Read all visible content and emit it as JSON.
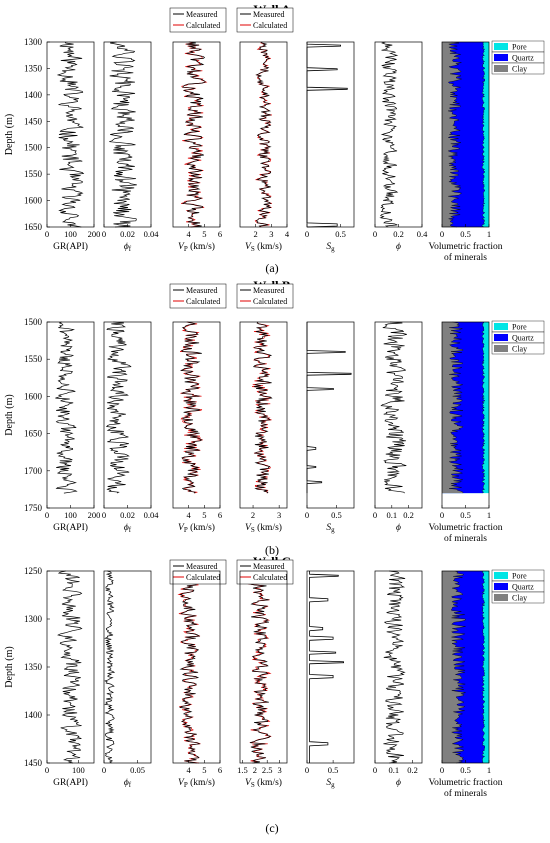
{
  "chart_data": [
    {
      "title": "Well A",
      "caption": "(a)",
      "type": "line",
      "depth_label": "Depth (m)",
      "depth_range": [
        1300,
        1650
      ],
      "depth_ticks": [
        "1300",
        "1350",
        "1400",
        "1450",
        "1500",
        "1550",
        "1600",
        "1650"
      ],
      "panels": [
        {
          "id": "gr",
          "xlabel": "GR(API)",
          "xlim": [
            0,
            200
          ],
          "xticks": [
            "0",
            "100",
            "200"
          ]
        },
        {
          "id": "phif",
          "xlabel": "ϕ",
          "xlabel_sub": "f",
          "xlim": [
            0,
            0.04
          ],
          "xticks": [
            "0",
            "0.02",
            "0.04"
          ]
        },
        {
          "id": "vp",
          "xlabel": "V",
          "xlabel_sub": "P",
          "xlabel_suffix": " (km/s)",
          "xlim": [
            3,
            6
          ],
          "xticks": [
            "4",
            "5",
            "6"
          ],
          "legend": [
            "Measured",
            "Calculated"
          ]
        },
        {
          "id": "vs",
          "xlabel": "V",
          "xlabel_sub": "S",
          "xlabel_suffix": " (km/s)",
          "xlim": [
            1,
            4
          ],
          "xticks": [
            "2",
            "3",
            "4"
          ],
          "legend": [
            "Measured",
            "Calculated"
          ]
        },
        {
          "id": "sg",
          "xlabel": "S",
          "xlabel_sub": "g",
          "xlim": [
            0,
            0.7
          ],
          "xticks": [
            "0",
            "0.5"
          ]
        },
        {
          "id": "phi",
          "xlabel": "ϕ",
          "xlim": [
            0,
            0.4
          ],
          "xticks": [
            "0",
            "0.2",
            "0.4"
          ]
        },
        {
          "id": "vol",
          "xlabel": "Volumetric fraction",
          "xlabel2": "of minerals",
          "xlim": [
            0,
            1
          ],
          "xticks": [
            "0",
            "0.5",
            "1"
          ],
          "legend": [
            "Pore",
            "Quartz",
            "Clay"
          ]
        }
      ],
      "series": {
        "gr": {
          "mean": 100,
          "amp": 45,
          "seed": 11,
          "lo": 30,
          "hi": 200
        },
        "phif": {
          "mean": 0.016,
          "amp": 0.01,
          "seed": 12,
          "lo": 0,
          "hi": 0.04
        },
        "vp": {
          "mean": 4.3,
          "amp": 0.55,
          "seed": 13,
          "lo": 3.2,
          "hi": 5.8
        },
        "vs": {
          "mean": 2.55,
          "amp": 0.4,
          "seed": 14,
          "lo": 1.6,
          "hi": 3.8
        },
        "sg": {
          "base": 0.0,
          "spikes": [
            [
              1307,
              0.5
            ],
            [
              1352,
              0.45
            ],
            [
              1388,
              0.6
            ],
            [
              1646,
              0.45
            ]
          ]
        },
        "phi": {
          "mean": 0.12,
          "amp": 0.06,
          "seed": 15,
          "lo": 0,
          "hi": 0.38
        },
        "vol": {
          "clay": 0.28,
          "clay_amp": 0.15,
          "quartz_top": 0.88,
          "seed": 16
        }
      }
    },
    {
      "title": "Well B",
      "caption": "(b)",
      "type": "line",
      "depth_label": "Depth (m)",
      "depth_range": [
        1500,
        1750
      ],
      "depth_ticks": [
        "1500",
        "1550",
        "1600",
        "1650",
        "1700",
        "1750"
      ],
      "data_end": 1730,
      "panels": [
        {
          "id": "gr",
          "xlabel": "GR(API)",
          "xlim": [
            0,
            200
          ],
          "xticks": [
            "0",
            "100",
            "200"
          ]
        },
        {
          "id": "phif",
          "xlabel": "ϕ",
          "xlabel_sub": "f",
          "xlim": [
            0,
            0.04
          ],
          "xticks": [
            "0",
            "0.02",
            "0.04"
          ]
        },
        {
          "id": "vp",
          "xlabel": "V",
          "xlabel_sub": "P",
          "xlabel_suffix": " (km/s)",
          "xlim": [
            3,
            6
          ],
          "xticks": [
            "4",
            "5",
            "6"
          ],
          "legend": [
            "Measured",
            "Calculated"
          ]
        },
        {
          "id": "vs",
          "xlabel": "V",
          "xlabel_sub": "S",
          "xlabel_suffix": " (km/s)",
          "xlim": [
            1.5,
            3.3
          ],
          "xticks": [
            "2",
            "3"
          ],
          "legend": [
            "Measured",
            "Calculated"
          ]
        },
        {
          "id": "sg",
          "xlabel": "S",
          "xlabel_sub": "g",
          "xlim": [
            0,
            0.8
          ],
          "xticks": [
            "0",
            "0.5"
          ]
        },
        {
          "id": "phi",
          "xlabel": "ϕ",
          "xlim": [
            0,
            0.28
          ],
          "xticks": [
            "0",
            "0.1",
            "0.2"
          ]
        },
        {
          "id": "vol",
          "xlabel": "Volumetric fraction",
          "xlabel2": "of minerals",
          "xlim": [
            0,
            1
          ],
          "xticks": [
            "0",
            "0.5",
            "1"
          ],
          "legend": [
            "Pore",
            "Quartz",
            "Clay"
          ]
        }
      ],
      "series": {
        "gr": {
          "mean": 80,
          "amp": 35,
          "seed": 21,
          "lo": 20,
          "hi": 190
        },
        "phif": {
          "mean": 0.012,
          "amp": 0.008,
          "seed": 22,
          "lo": 0,
          "hi": 0.038
        },
        "vp": {
          "mean": 4.2,
          "amp": 0.55,
          "seed": 23,
          "lo": 3.2,
          "hi": 5.8
        },
        "vs": {
          "mean": 2.35,
          "amp": 0.3,
          "seed": 24,
          "lo": 1.7,
          "hi": 3.2
        },
        "sg": {
          "base": 0.0,
          "spikes": [
            [
              1540,
              0.65
            ],
            [
              1570,
              0.75
            ],
            [
              1590,
              0.45
            ],
            [
              1670,
              0.15
            ],
            [
              1695,
              0.15
            ],
            [
              1715,
              0.25
            ]
          ]
        },
        "phi": {
          "mean": 0.12,
          "amp": 0.06,
          "seed": 25,
          "lo": 0,
          "hi": 0.26
        },
        "vol": {
          "clay": 0.3,
          "clay_amp": 0.15,
          "quartz_top": 0.88,
          "seed": 26
        }
      }
    },
    {
      "title": "Well C",
      "caption": "(c)",
      "type": "line",
      "depth_label": "Depth (m)",
      "depth_range": [
        1250,
        1450
      ],
      "depth_ticks": [
        "1250",
        "1300",
        "1350",
        "1400",
        "1450"
      ],
      "panels": [
        {
          "id": "gr",
          "xlabel": "GR(API)",
          "xlim": [
            0,
            150
          ],
          "xticks": [
            "0",
            "100"
          ]
        },
        {
          "id": "phif",
          "xlabel": "ϕ",
          "xlabel_sub": "f",
          "xlim": [
            0,
            0.07
          ],
          "xticks": [
            "0",
            "0.05"
          ]
        },
        {
          "id": "vp",
          "xlabel": "V",
          "xlabel_sub": "P",
          "xlabel_suffix": " (km/s)",
          "xlim": [
            3,
            6
          ],
          "xticks": [
            "4",
            "5",
            "6"
          ],
          "legend": [
            "Measured",
            "Calculated"
          ]
        },
        {
          "id": "vs",
          "xlabel": "V",
          "xlabel_sub": "S",
          "xlabel_suffix": " (km/s)",
          "xlim": [
            1.4,
            3.3
          ],
          "xticks": [
            "1.5",
            "2",
            "2.5",
            "3"
          ],
          "legend": [
            "Measured",
            "Calculated"
          ]
        },
        {
          "id": "sg",
          "xlabel": "S",
          "xlabel_sub": "g",
          "xlim": [
            0,
            0.9
          ],
          "xticks": [
            "0",
            "0.5"
          ]
        },
        {
          "id": "phi",
          "xlabel": "ϕ",
          "xlim": [
            0,
            0.25
          ],
          "xticks": [
            "0",
            "0.1",
            "0.2"
          ]
        },
        {
          "id": "vol",
          "xlabel": "Volumetric fraction",
          "xlabel2": "of minerals",
          "xlim": [
            0,
            1
          ],
          "xticks": [
            "0",
            "0.5",
            "1"
          ],
          "legend": [
            "Pore",
            "Quartz",
            "Clay"
          ]
        }
      ],
      "series": {
        "gr": {
          "mean": 75,
          "amp": 30,
          "seed": 31,
          "lo": 15,
          "hi": 145
        },
        "phif": {
          "mean": 0.008,
          "amp": 0.006,
          "seed": 32,
          "lo": 0,
          "hi": 0.065
        },
        "vp": {
          "mean": 4.1,
          "amp": 0.5,
          "seed": 33,
          "lo": 3.2,
          "hi": 5.8
        },
        "vs": {
          "mean": 2.2,
          "amp": 0.35,
          "seed": 34,
          "lo": 1.5,
          "hi": 3.2
        },
        "sg": {
          "base": 0.05,
          "spikes": [
            [
              1255,
              0.6
            ],
            [
              1280,
              0.4
            ],
            [
              1310,
              0.3
            ],
            [
              1320,
              0.5
            ],
            [
              1335,
              0.55
            ],
            [
              1345,
              0.7
            ],
            [
              1360,
              0.5
            ],
            [
              1430,
              0.4
            ]
          ]
        },
        "phi": {
          "mean": 0.1,
          "amp": 0.05,
          "seed": 35,
          "lo": 0,
          "hi": 0.24
        },
        "vol": {
          "clay": 0.35,
          "clay_amp": 0.15,
          "quartz_top": 0.88,
          "seed": 36
        }
      }
    }
  ],
  "colors": {
    "measured": "#000000",
    "calculated": "#e00000",
    "pore": "#00e5e5",
    "quartz": "#0000ff",
    "clay": "#808080"
  }
}
